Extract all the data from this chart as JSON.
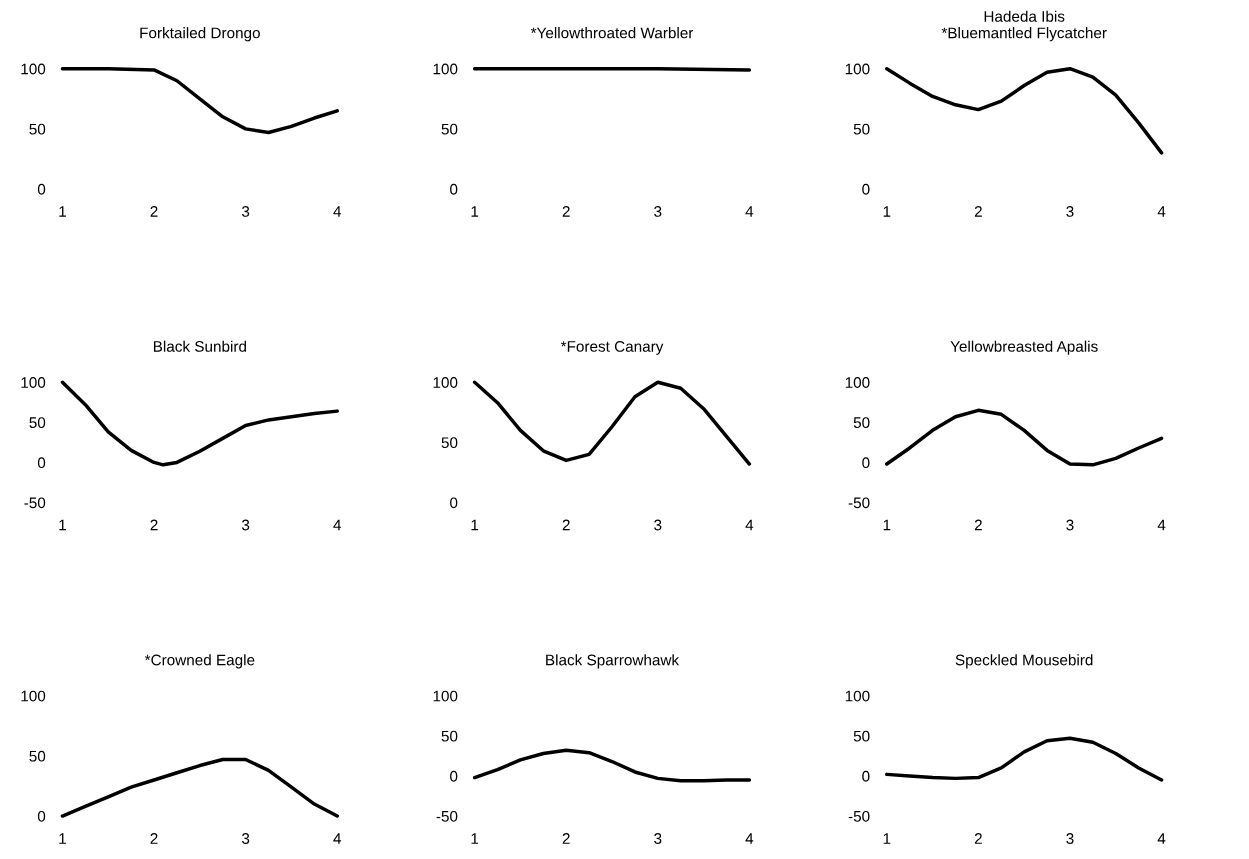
{
  "chart_data": [
    {
      "type": "line",
      "title": "Forktailed Drongo",
      "x": [
        1,
        1.5,
        2,
        2.25,
        2.5,
        2.75,
        3,
        3.25,
        3.5,
        3.75,
        4
      ],
      "values": [
        100,
        100,
        99,
        90,
        75,
        60,
        50,
        47,
        52,
        59,
        65
      ],
      "color": "#000000",
      "xlim": [
        1,
        4
      ],
      "xticks": [
        1,
        2,
        3,
        4
      ],
      "ylim": [
        0,
        100
      ],
      "yticks": [
        0,
        50,
        100
      ]
    },
    {
      "type": "line",
      "title": "*Yellowthroated Warbler",
      "x": [
        1,
        2,
        3,
        4
      ],
      "values": [
        100,
        100,
        100,
        99
      ],
      "color": "#000000",
      "xlim": [
        1,
        4
      ],
      "xticks": [
        1,
        2,
        3,
        4
      ],
      "ylim": [
        0,
        100
      ],
      "yticks": [
        0,
        50,
        100
      ]
    },
    {
      "type": "line",
      "title": "Hadeda Ibis\n*Bluemantled Flycatcher",
      "x": [
        1,
        1.25,
        1.5,
        1.75,
        2,
        2.25,
        2.5,
        2.75,
        3,
        3.25,
        3.5,
        3.75,
        4
      ],
      "values": [
        100,
        88,
        77,
        70,
        66,
        73,
        86,
        97,
        100,
        93,
        78,
        55,
        30
      ],
      "color": "#000000",
      "xlim": [
        1,
        4
      ],
      "xticks": [
        1,
        2,
        3,
        4
      ],
      "ylim": [
        0,
        100
      ],
      "yticks": [
        0,
        50,
        100
      ]
    },
    {
      "type": "line",
      "title": "Black Sunbird",
      "x": [
        1,
        1.25,
        1.5,
        1.75,
        2,
        2.1,
        2.25,
        2.5,
        2.75,
        3,
        3.25,
        3.5,
        3.75,
        4
      ],
      "values": [
        100,
        72,
        38,
        15,
        0,
        -3,
        0,
        14,
        30,
        46,
        53,
        57,
        61,
        64
      ],
      "color": "#000000",
      "xlim": [
        1,
        4
      ],
      "xticks": [
        1,
        2,
        3,
        4
      ],
      "ylim": [
        -50,
        100
      ],
      "yticks": [
        -50,
        0,
        50,
        100
      ]
    },
    {
      "type": "line",
      "title": "*Forest Canary",
      "x": [
        1,
        1.25,
        1.5,
        1.75,
        2,
        2.25,
        2.5,
        2.75,
        3,
        3.25,
        3.5,
        3.75,
        4
      ],
      "values": [
        100,
        83,
        60,
        43,
        35,
        40,
        63,
        88,
        100,
        95,
        78,
        55,
        32
      ],
      "color": "#000000",
      "xlim": [
        1,
        4
      ],
      "xticks": [
        1,
        2,
        3,
        4
      ],
      "ylim": [
        0,
        100
      ],
      "yticks": [
        0,
        50,
        100
      ]
    },
    {
      "type": "line",
      "title": "Yellowbreasted Apalis",
      "x": [
        1,
        1.25,
        1.5,
        1.75,
        2,
        2.25,
        2.5,
        2.75,
        3,
        3.25,
        3.5,
        3.75,
        4
      ],
      "values": [
        -2,
        18,
        40,
        57,
        65,
        60,
        40,
        15,
        -2,
        -3,
        5,
        18,
        30
      ],
      "color": "#000000",
      "xlim": [
        1,
        4
      ],
      "xticks": [
        1,
        2,
        3,
        4
      ],
      "ylim": [
        -50,
        100
      ],
      "yticks": [
        -50,
        0,
        50,
        100
      ]
    },
    {
      "type": "line",
      "title": "*Crowned Eagle",
      "x": [
        1,
        1.25,
        1.5,
        1.75,
        2,
        2.25,
        2.5,
        2.75,
        3,
        3.25,
        3.5,
        3.75,
        4
      ],
      "values": [
        0,
        8,
        16,
        24,
        30,
        36,
        42,
        47,
        47,
        38,
        24,
        10,
        0
      ],
      "color": "#000000",
      "xlim": [
        1,
        4
      ],
      "xticks": [
        1,
        2,
        3,
        4
      ],
      "ylim": [
        0,
        100
      ],
      "yticks": [
        0,
        50,
        100
      ]
    },
    {
      "type": "line",
      "title": "Black Sparrowhawk",
      "x": [
        1,
        1.25,
        1.5,
        1.75,
        2,
        2.25,
        2.5,
        2.75,
        3,
        3.25,
        3.5,
        3.75,
        4
      ],
      "values": [
        -2,
        8,
        20,
        28,
        32,
        29,
        18,
        5,
        -3,
        -6,
        -6,
        -5,
        -5
      ],
      "color": "#000000",
      "xlim": [
        1,
        4
      ],
      "xticks": [
        1,
        2,
        3,
        4
      ],
      "ylim": [
        -50,
        100
      ],
      "yticks": [
        -50,
        0,
        50,
        100
      ]
    },
    {
      "type": "line",
      "title": "Speckled Mousebird",
      "x": [
        1,
        1.25,
        1.5,
        1.75,
        2,
        2.25,
        2.5,
        2.75,
        3,
        3.25,
        3.5,
        3.75,
        4
      ],
      "values": [
        2,
        0,
        -2,
        -3,
        -2,
        10,
        30,
        44,
        47,
        42,
        28,
        10,
        -5
      ],
      "color": "#000000",
      "xlim": [
        1,
        4
      ],
      "xticks": [
        1,
        2,
        3,
        4
      ],
      "ylim": [
        -50,
        100
      ],
      "yticks": [
        -50,
        0,
        50,
        100
      ]
    }
  ]
}
